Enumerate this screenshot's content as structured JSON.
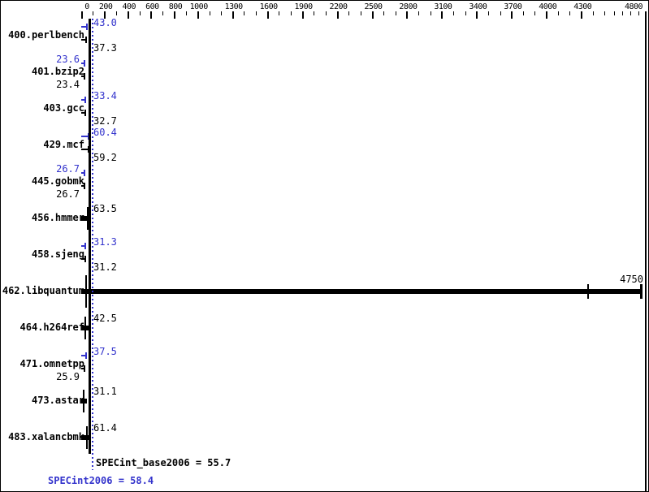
{
  "chart_data": {
    "type": "bar",
    "orientation": "horizontal",
    "title": "",
    "x_axis": {
      "min": 0,
      "max": 4800,
      "minor_tick_step": 100,
      "tick_labels": [
        0,
        200,
        400,
        600,
        800,
        1000,
        1300,
        1600,
        1900,
        2200,
        2500,
        2800,
        3100,
        3400,
        3700,
        4000,
        4300,
        4800
      ],
      "position": "top",
      "compressed_above": 4500
    },
    "benchmarks": [
      {
        "name": "400.perlbench",
        "peak": 43.0,
        "base": 37.3,
        "peak_text": "43.0",
        "base_text": "37.3",
        "peak_side": "right",
        "base_side": "right"
      },
      {
        "name": "401.bzip2",
        "peak": 23.6,
        "base": 23.4,
        "peak_text": "23.6",
        "base_text": "23.4",
        "peak_side": "left",
        "base_side": "left"
      },
      {
        "name": "403.gcc",
        "peak": 33.4,
        "base": 32.7,
        "peak_text": "33.4",
        "base_text": "32.7",
        "peak_side": "right",
        "base_side": "right"
      },
      {
        "name": "429.mcf",
        "peak": 60.4,
        "base": 59.2,
        "peak_text": "60.4",
        "base_text": "59.2",
        "peak_side": "right",
        "base_side": "right"
      },
      {
        "name": "445.gobmk",
        "peak": 26.7,
        "base": 26.7,
        "peak_text": "26.7",
        "base_text": "26.7",
        "peak_side": "left",
        "base_side": "left"
      },
      {
        "name": "456.hmmer",
        "value": 63.5,
        "value_text": "63.5"
      },
      {
        "name": "458.sjeng",
        "peak": 31.3,
        "base": 31.2,
        "peak_text": "31.3",
        "base_text": "31.2",
        "peak_side": "right",
        "base_side": "right"
      },
      {
        "name": "462.libquantum",
        "value": 4750,
        "value_text": "4750",
        "outlier": true
      },
      {
        "name": "464.h264ref",
        "value": 42.5,
        "value_text": "42.5"
      },
      {
        "name": "471.omnetpp",
        "peak": 37.5,
        "base": 25.9,
        "peak_text": "37.5",
        "base_text": "25.9",
        "peak_side": "right",
        "base_side": "left"
      },
      {
        "name": "473.astar",
        "value": 31.1,
        "value_text": "31.1"
      },
      {
        "name": "483.xalancbmk",
        "value": 61.4,
        "value_text": "61.4"
      }
    ],
    "summary": {
      "base_text": "SPECint_base2006 = 55.7",
      "peak_text": "SPECint2006 = 58.4",
      "base_value": 55.7,
      "peak_value": 58.4
    },
    "colors": {
      "peak_blue": "#3333cc",
      "base_black": "#000000"
    }
  }
}
